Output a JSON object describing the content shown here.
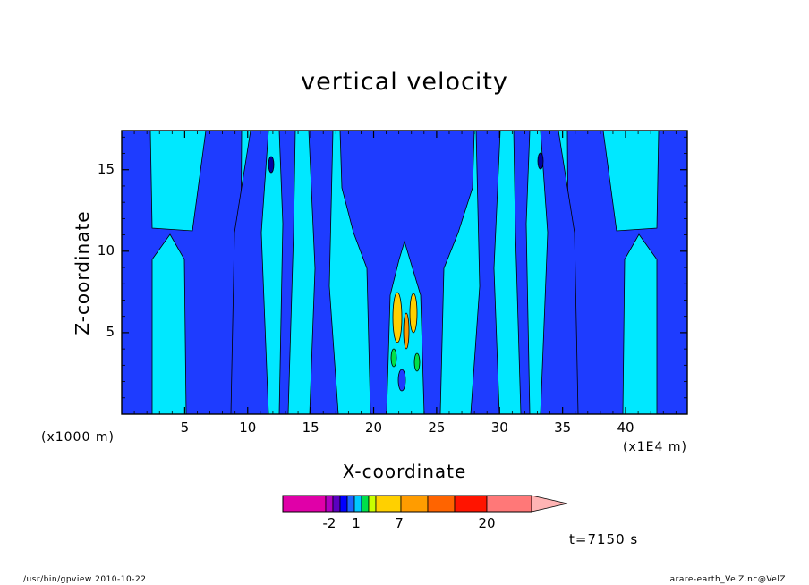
{
  "chart_data": {
    "type": "heatmap",
    "subtype": "filled-contour",
    "title": "vertical velocity",
    "xlabel": "X-coordinate",
    "ylabel": "Z-coordinate",
    "x_unit_left": "(x1000 m)",
    "x_unit_right": "(x1E4 m)",
    "x_ticks": [
      "5",
      "10",
      "15",
      "20",
      "25",
      "30",
      "35",
      "40"
    ],
    "x_tick_values": [
      5,
      10,
      15,
      20,
      25,
      30,
      35,
      40
    ],
    "y_ticks": [
      "5",
      "10",
      "15"
    ],
    "y_tick_values": [
      5,
      10,
      15
    ],
    "xlim": [
      0,
      44.9
    ],
    "ylim": [
      0,
      17.4
    ],
    "colorbar": {
      "labels": [
        "-2",
        "1",
        "7",
        "20"
      ],
      "label_values": [
        -2,
        1,
        7,
        20
      ],
      "colors": [
        "#e000a8",
        "#b000c0",
        "#5a00c0",
        "#0000ff",
        "#1e64ff",
        "#00c8ff",
        "#00e04a",
        "#c8ff00",
        "#ffd000",
        "#ff9c00",
        "#ff6400",
        "#ff1400",
        "#ff7878",
        "#ffb4b4"
      ],
      "extend": "max"
    },
    "dominant_colors": {
      "negative": "#1e3cff",
      "near_zero": "#00e8ff"
    },
    "time_label": "t=7150 s"
  },
  "footer": {
    "left": "/usr/bin/gpview   2010-10-22",
    "right": "arare-earth_VelZ.nc@VelZ"
  }
}
